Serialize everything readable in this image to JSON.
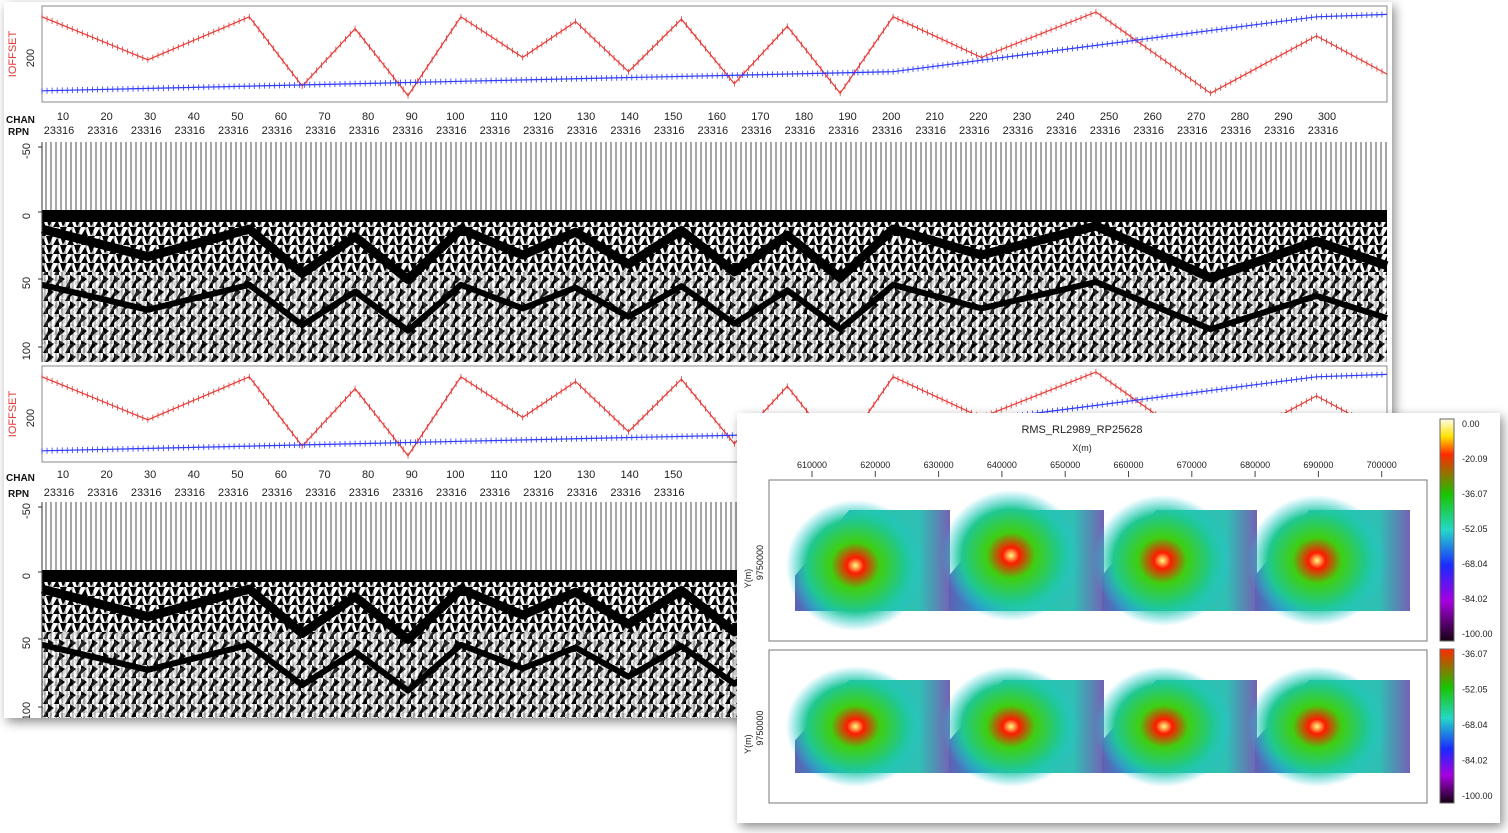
{
  "seismic": {
    "offset_label": "IOFFSET",
    "offset_tick": "200",
    "chan_label": "CHAN",
    "rpn_label": "RPN",
    "rpn_value": "23316",
    "time_ticks": [
      "-50",
      "0",
      "50",
      "100"
    ],
    "colors": {
      "offset": "#e53935",
      "index": "#2e3bff"
    },
    "panels": [
      {
        "chan_ticks": [
          "10",
          "20",
          "30",
          "40",
          "50",
          "60",
          "70",
          "80",
          "90",
          "100",
          "110",
          "120",
          "130",
          "140",
          "150",
          "160",
          "170",
          "180",
          "190",
          "200",
          "210",
          "220",
          "230",
          "240",
          "250",
          "260",
          "270",
          "280",
          "290",
          "300"
        ],
        "shows_full_width": true
      },
      {
        "chan_ticks": [
          "10",
          "20",
          "30",
          "40",
          "50",
          "60",
          "70",
          "80",
          "90",
          "100",
          "110",
          "120",
          "130",
          "140",
          "150"
        ],
        "shows_full_width": false
      }
    ]
  },
  "rms": {
    "title": "RMS_RL2989_RP25628",
    "xlabel": "X(m)",
    "ylabel": "Y(m)",
    "y_tick": "9750000",
    "x_ticks": [
      "610000",
      "620000",
      "630000",
      "640000",
      "650000",
      "660000",
      "670000",
      "680000",
      "690000",
      "700000"
    ],
    "colorbar_top": [
      "0.00",
      "-20.09",
      "-36.07",
      "-52.05",
      "-68.04",
      "-84.02",
      "-100.00"
    ],
    "colorbar_bottom": [
      "-36.07",
      "-52.05",
      "-68.04",
      "-84.02",
      "-100.00"
    ]
  },
  "chart_data": [
    {
      "type": "line",
      "title": "",
      "ylabel": "IOFFSET",
      "xlabel": "CHAN",
      "x_range": [
        1,
        306
      ],
      "series": [
        {
          "x": [
            1,
            25,
            48,
            60,
            72,
            84,
            96,
            110,
            122,
            134,
            146,
            158,
            170,
            182,
            194,
            214,
            240,
            266,
            290,
            306
          ],
          "y": [
            340,
            160,
            340,
            50,
            290,
            10,
            340,
            170,
            320,
            110,
            330,
            60,
            300,
            20,
            340,
            170,
            360,
            20,
            260,
            100
          ]
        },
        {
          "x": [
            1,
            48,
            96,
            194,
            290,
            306
          ],
          "y": [
            30,
            50,
            70,
            110,
            340,
            350
          ]
        }
      ]
    },
    {
      "type": "heatmap",
      "title": "RMS_RL2989_RP25628",
      "xlabel": "X(m)",
      "ylabel": "Y(m)",
      "x_range": [
        605000,
        705000
      ],
      "value_range": [
        -100.0,
        0.0
      ]
    }
  ]
}
